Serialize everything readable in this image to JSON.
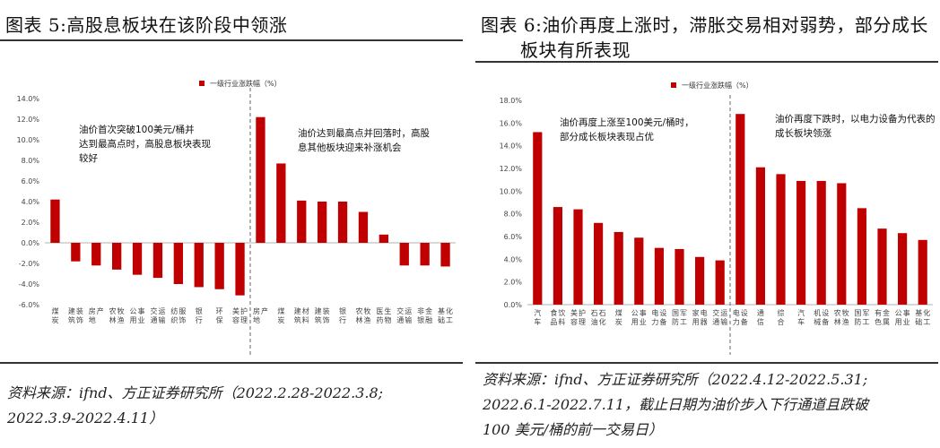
{
  "left": {
    "figure_title": "图表 5:高股息板块在该阶段中领涨",
    "source": [
      "资料来源：ifnd、方正证券研究所（2022.2.28-2022.3.8;",
      "2022.3.9-2022.4.11）"
    ]
  },
  "right": {
    "figure_title": [
      "图表 6:油价再度上涨时，滞胀交易相对弱势，部分成长",
      "板块有所表现"
    ],
    "source": [
      "资料来源：ifnd、方正证券研究所（2022.4.12-2022.5.31;",
      "2022.6.1-2022.7.11，截止日期为油价步入下行通道且跌破",
      "100 美元/桶的前一交易日）"
    ]
  },
  "chart_data": [
    {
      "type": "bar",
      "title": "",
      "legend": "一级行业涨跌幅（%）",
      "legend_position": "top",
      "ylim": [
        -6,
        14
      ],
      "yticks": [
        "14.0%",
        "12.0%",
        "10.0%",
        "8.0%",
        "6.0%",
        "4.0%",
        "2.0%",
        "0.0%",
        "-2.0%",
        "-4.0%",
        "-6.0%"
      ],
      "color": "#c00000",
      "categories": [
        "煤炭",
        "建筑装饰",
        "房地产",
        "农林牧渔",
        "公用事业",
        "交通运输",
        "纺织服饰",
        "银行",
        "环保",
        "美容护理",
        "房地产",
        "煤炭",
        "建筑材料",
        "建筑装饰",
        "银行",
        "农林牧渔",
        "医药生物",
        "交通运输",
        "非银金融",
        "基础化工"
      ],
      "values": [
        4.2,
        -1.8,
        -2.2,
        -2.6,
        -3.1,
        -3.4,
        -4.0,
        -4.3,
        -4.5,
        -5.1,
        12.2,
        7.7,
        4.1,
        4.0,
        4.0,
        3.0,
        0.8,
        -2.2,
        -2.2,
        -2.3
      ],
      "divider_after": 10,
      "annotations": [
        "油价首次突破100美元/桶并达到最高点时，高股息板块表现较好",
        "油价达到最高点并回落时，高股息其他板块迎来补涨机会"
      ]
    },
    {
      "type": "bar",
      "title": "",
      "legend": "一级行业涨跌幅（%）",
      "legend_position": "top",
      "ylim": [
        0,
        18
      ],
      "yticks": [
        "18.0%",
        "16.0%",
        "14.0%",
        "12.0%",
        "10.0%",
        "8.0%",
        "6.0%",
        "4.0%",
        "2.0%",
        "0.0%"
      ],
      "color": "#c00000",
      "categories": [
        "汽车",
        "食品饮料",
        "美容护理",
        "石油石化",
        "煤炭",
        "公用事业",
        "电力设备",
        "国防军工",
        "家用电器",
        "交通运输",
        "电力设备",
        "通信",
        "综合",
        "汽车",
        "机械设备",
        "农林牧渔",
        "国防军工",
        "有色金属",
        "公用事业",
        "基础化工"
      ],
      "values": [
        15.2,
        8.6,
        8.4,
        7.2,
        6.4,
        5.9,
        5.0,
        4.9,
        4.2,
        3.9,
        16.8,
        12.1,
        11.5,
        10.9,
        10.9,
        10.7,
        8.5,
        6.7,
        6.3,
        5.7
      ],
      "divider_after": 10,
      "annotations": [
        "油价再度上涨至100美元/桶时，部分成长板块表现占优",
        "油价再度下跌时，以电力设备为代表的成长板块领涨"
      ]
    }
  ]
}
